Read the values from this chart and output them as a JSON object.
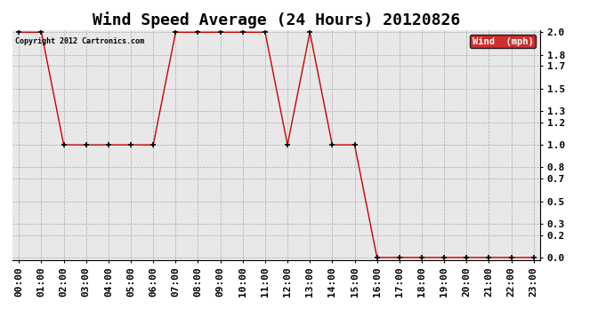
{
  "title": "Wind Speed Average (24 Hours) 20120826",
  "copyright": "Copyright 2012 Cartronics.com",
  "x_labels": [
    "00:00",
    "01:00",
    "02:00",
    "03:00",
    "04:00",
    "05:00",
    "06:00",
    "07:00",
    "08:00",
    "09:00",
    "10:00",
    "11:00",
    "12:00",
    "13:00",
    "14:00",
    "15:00",
    "16:00",
    "17:00",
    "18:00",
    "19:00",
    "20:00",
    "21:00",
    "22:00",
    "23:00"
  ],
  "x_values": [
    0,
    1,
    2,
    3,
    4,
    5,
    6,
    7,
    8,
    9,
    10,
    11,
    12,
    13,
    14,
    15,
    16,
    17,
    18,
    19,
    20,
    21,
    22,
    23
  ],
  "y_values": [
    2.0,
    2.0,
    1.0,
    1.0,
    1.0,
    1.0,
    1.0,
    2.0,
    2.0,
    2.0,
    2.0,
    2.0,
    1.0,
    2.0,
    1.0,
    1.0,
    0.0,
    0.0,
    0.0,
    0.0,
    0.0,
    0.0,
    0.0,
    0.0
  ],
  "line_color": "#cc0000",
  "marker_color": "#000000",
  "background_color": "#ffffff",
  "plot_bg_color": "#e8e8e8",
  "grid_color": "#aaaaaa",
  "ylim": [
    0.0,
    2.0
  ],
  "yticks": [
    0.0,
    0.2,
    0.3,
    0.5,
    0.7,
    0.8,
    1.0,
    1.2,
    1.3,
    1.5,
    1.7,
    1.8,
    2.0
  ],
  "title_fontsize": 13,
  "tick_fontsize": 8,
  "legend_label": "Wind  (mph)",
  "legend_bg": "#cc0000",
  "legend_text_color": "#ffffff"
}
